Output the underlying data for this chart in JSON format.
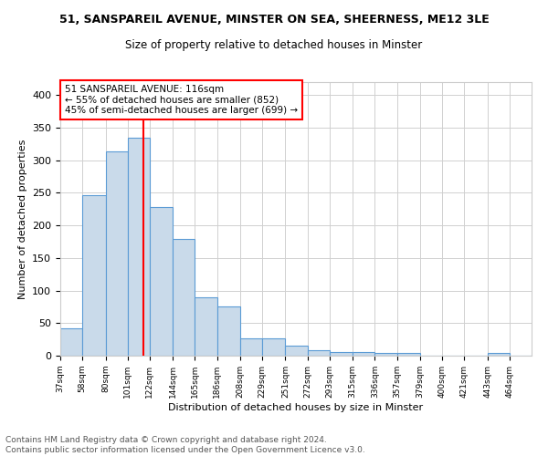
{
  "title1": "51, SANSPAREIL AVENUE, MINSTER ON SEA, SHEERNESS, ME12 3LE",
  "title2": "Size of property relative to detached houses in Minster",
  "xlabel": "Distribution of detached houses by size in Minster",
  "ylabel": "Number of detached properties",
  "bar_color": "#c9daea",
  "bar_edge_color": "#5b9bd5",
  "annotation_line_color": "red",
  "property_size": 116,
  "annotation_text_line1": "51 SANSPAREIL AVENUE: 116sqm",
  "annotation_text_line2": "← 55% of detached houses are smaller (852)",
  "annotation_text_line3": "45% of semi-detached houses are larger (699) →",
  "annotation_box_color": "white",
  "annotation_box_edge": "red",
  "footer": "Contains HM Land Registry data © Crown copyright and database right 2024.\nContains public sector information licensed under the Open Government Licence v3.0.",
  "categories": [
    "37sqm",
    "58sqm",
    "80sqm",
    "101sqm",
    "122sqm",
    "144sqm",
    "165sqm",
    "186sqm",
    "208sqm",
    "229sqm",
    "251sqm",
    "272sqm",
    "293sqm",
    "315sqm",
    "336sqm",
    "357sqm",
    "379sqm",
    "400sqm",
    "421sqm",
    "443sqm",
    "464sqm"
  ],
  "values": [
    42,
    246,
    314,
    335,
    228,
    179,
    89,
    75,
    26,
    26,
    16,
    9,
    5,
    5,
    4,
    4,
    0,
    0,
    0,
    4,
    0
  ],
  "bin_edges": [
    37,
    58,
    80,
    101,
    122,
    144,
    165,
    186,
    208,
    229,
    251,
    272,
    293,
    315,
    336,
    357,
    379,
    400,
    421,
    443,
    464,
    485
  ],
  "ylim": [
    0,
    420
  ],
  "yticks": [
    0,
    50,
    100,
    150,
    200,
    250,
    300,
    350,
    400
  ],
  "vline_x": 116,
  "fig_width": 6.0,
  "fig_height": 5.0,
  "dpi": 100
}
